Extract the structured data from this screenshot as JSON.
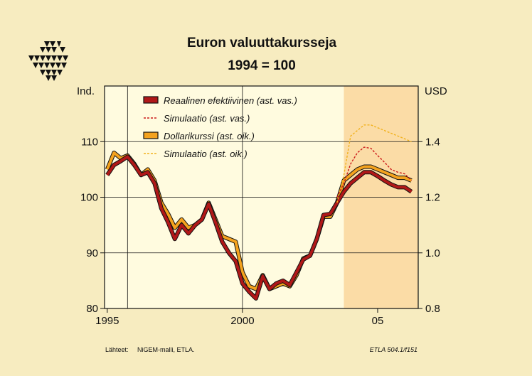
{
  "chart_data": {
    "type": "line",
    "title": "Euron valuuttakursseja",
    "subtitle": "1994 = 100",
    "left_axis": {
      "label": "Ind.",
      "ylim": [
        80,
        120
      ],
      "ticks": [
        "80",
        "90",
        "100",
        "110"
      ],
      "tick_values": [
        80,
        90,
        100,
        110
      ]
    },
    "right_axis": {
      "label": "USD",
      "ylim": [
        0.8,
        1.6
      ],
      "ticks": [
        "0.8",
        "1.0",
        "1.2",
        "1.4"
      ],
      "tick_values": [
        0.8,
        1.0,
        1.2,
        1.4
      ]
    },
    "x_axis": {
      "xlim": [
        1994.9,
        2006.5
      ],
      "tick_labels": [
        "1995",
        "2000",
        "05"
      ],
      "tick_values": [
        1995,
        2000,
        2005
      ],
      "gridlines": [
        1995.75,
        2000.0
      ]
    },
    "forecast_shade_start": 2003.75,
    "forecast_shade_color": "#fbdca6",
    "plot_bg": "#fffbdf",
    "page_bg": "#f7ecc0",
    "series": [
      {
        "name": "Reaalinen efektiivinen (ast. vas.)",
        "axis": "left",
        "style": "solid-thick",
        "color": "#b01818",
        "x": [
          1995.0,
          1995.25,
          1995.5,
          1995.75,
          1996.0,
          1996.25,
          1996.5,
          1996.75,
          1997.0,
          1997.25,
          1997.5,
          1997.75,
          1998.0,
          1998.25,
          1998.5,
          1998.75,
          1999.0,
          1999.25,
          1999.5,
          1999.75,
          2000.0,
          2000.25,
          2000.5,
          2000.75,
          2001.0,
          2001.25,
          2001.5,
          2001.75,
          2002.0,
          2002.25,
          2002.5,
          2002.75,
          2003.0,
          2003.25,
          2003.5,
          2003.75,
          2004.0,
          2004.25,
          2004.5,
          2004.75,
          2005.0,
          2005.25,
          2005.5,
          2005.75,
          2006.0,
          2006.25
        ],
        "values": [
          104.0,
          105.8,
          106.5,
          107.3,
          105.8,
          104.0,
          104.5,
          102.5,
          98.0,
          95.5,
          92.5,
          95.0,
          93.5,
          95.0,
          96.0,
          98.8,
          95.5,
          92.0,
          90.0,
          88.5,
          84.5,
          83.0,
          81.8,
          85.8,
          83.5,
          84.5,
          85.0,
          84.2,
          86.5,
          88.8,
          89.5,
          92.5,
          96.8,
          97.0,
          99.0,
          101.0,
          102.5,
          103.5,
          104.5,
          104.5,
          103.8,
          103.0,
          102.3,
          101.8,
          101.8,
          101.0
        ]
      },
      {
        "name": "Simulaatio (ast. vas.)",
        "axis": "left",
        "style": "dashed-thin",
        "color": "#cc1a1a",
        "x": [
          2003.5,
          2003.75,
          2004.0,
          2004.25,
          2004.5,
          2004.75,
          2005.0,
          2005.25,
          2005.5,
          2005.75,
          2006.0,
          2006.25
        ],
        "values": [
          100.0,
          102.5,
          106.0,
          108.0,
          109.0,
          108.8,
          107.5,
          106.3,
          105.0,
          104.5,
          104.2,
          103.0
        ]
      },
      {
        "name": "Dollarikurssi (ast. oik.)",
        "axis": "right",
        "style": "solid-thick",
        "color": "#f4a21e",
        "x": [
          1995.0,
          1995.25,
          1995.5,
          1995.75,
          1996.0,
          1996.25,
          1996.5,
          1996.75,
          1997.0,
          1997.25,
          1997.5,
          1997.75,
          1998.0,
          1998.25,
          1998.5,
          1998.75,
          1999.0,
          1999.25,
          1999.5,
          1999.75,
          2000.0,
          2000.25,
          2000.5,
          2000.75,
          2001.0,
          2001.25,
          2001.5,
          2001.75,
          2002.0,
          2002.25,
          2002.5,
          2002.75,
          2003.0,
          2003.25,
          2003.5,
          2003.75,
          2004.0,
          2004.25,
          2004.5,
          2004.75,
          2005.0,
          2005.25,
          2005.5,
          2005.75,
          2006.0,
          2006.25
        ],
        "values": [
          1.3,
          1.36,
          1.34,
          1.35,
          1.32,
          1.28,
          1.3,
          1.26,
          1.18,
          1.14,
          1.09,
          1.12,
          1.09,
          1.1,
          1.12,
          1.18,
          1.12,
          1.06,
          1.05,
          1.04,
          0.93,
          0.88,
          0.87,
          0.92,
          0.87,
          0.88,
          0.89,
          0.88,
          0.92,
          0.98,
          0.99,
          1.05,
          1.13,
          1.13,
          1.18,
          1.26,
          1.28,
          1.3,
          1.31,
          1.31,
          1.3,
          1.29,
          1.28,
          1.27,
          1.27,
          1.26
        ]
      },
      {
        "name": "Simulaatio (ast. oik.)",
        "axis": "right",
        "style": "dashed-thin",
        "color": "#f2b21e",
        "x": [
          2003.5,
          2003.75,
          2004.0,
          2004.25,
          2004.5,
          2004.75,
          2005.0,
          2005.25,
          2005.5,
          2005.75,
          2006.0,
          2006.25
        ],
        "values": [
          1.18,
          1.28,
          1.42,
          1.44,
          1.46,
          1.46,
          1.45,
          1.44,
          1.43,
          1.42,
          1.41,
          1.4
        ]
      }
    ]
  },
  "footer": {
    "source_label": "Lähteet:",
    "source_text": "NiGEM-malli, ETLA.",
    "ref": "ETLA 504.1/f151"
  },
  "logo": {
    "name": "etla-logo",
    "color": "#111111"
  }
}
